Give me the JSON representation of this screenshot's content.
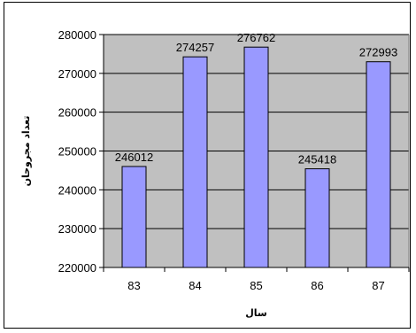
{
  "chart_data": {
    "type": "bar",
    "title": "",
    "xlabel": "سال",
    "ylabel": "تعداد مجروحان",
    "categories": [
      "83",
      "84",
      "85",
      "86",
      "87"
    ],
    "values": [
      246012,
      274257,
      276762,
      245418,
      272993
    ],
    "data_labels": [
      "246012",
      "274257",
      "276762",
      "245418",
      "272993"
    ],
    "ylim": [
      220000,
      280000
    ],
    "yticks": [
      "220000",
      "230000",
      "240000",
      "250000",
      "260000",
      "270000",
      "280000"
    ],
    "grid": true,
    "legend": "none",
    "colors": {
      "bar_fill": "#9999ff",
      "bar_stroke": "#000000",
      "plot_background": "#c0c0c0",
      "gridline": "#000000"
    }
  }
}
